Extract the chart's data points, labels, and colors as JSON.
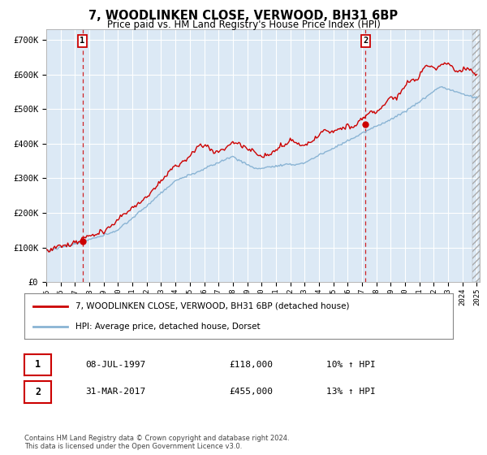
{
  "title": "7, WOODLINKEN CLOSE, VERWOOD, BH31 6BP",
  "subtitle": "Price paid vs. HM Land Registry's House Price Index (HPI)",
  "ylabel_ticks": [
    "£0",
    "£100K",
    "£200K",
    "£300K",
    "£400K",
    "£500K",
    "£600K",
    "£700K"
  ],
  "ytick_vals": [
    0,
    100000,
    200000,
    300000,
    400000,
    500000,
    600000,
    700000
  ],
  "ylim": [
    0,
    730000
  ],
  "xlim_start": 1995.0,
  "xlim_end": 2025.2,
  "bg_color": "#dce9f5",
  "grid_color": "#ffffff",
  "sale1_x": 1997.52,
  "sale1_y": 118000,
  "sale1_label": "1",
  "sale1_date": "08-JUL-1997",
  "sale1_price": "£118,000",
  "sale1_hpi": "10% ↑ HPI",
  "sale2_x": 2017.25,
  "sale2_y": 455000,
  "sale2_label": "2",
  "sale2_date": "31-MAR-2017",
  "sale2_price": "£455,000",
  "sale2_hpi": "13% ↑ HPI",
  "line1_color": "#cc0000",
  "line2_color": "#8ab4d4",
  "marker_color": "#cc0000",
  "vline_color": "#cc0000",
  "legend1_label": "7, WOODLINKEN CLOSE, VERWOOD, BH31 6BP (detached house)",
  "legend2_label": "HPI: Average price, detached house, Dorset",
  "footnote": "Contains HM Land Registry data © Crown copyright and database right 2024.\nThis data is licensed under the Open Government Licence v3.0.",
  "tick_years": [
    1995,
    1996,
    1997,
    1998,
    1999,
    2000,
    2001,
    2002,
    2003,
    2004,
    2005,
    2006,
    2007,
    2008,
    2009,
    2010,
    2011,
    2012,
    2013,
    2014,
    2015,
    2016,
    2017,
    2018,
    2019,
    2020,
    2021,
    2022,
    2023,
    2024,
    2025
  ]
}
